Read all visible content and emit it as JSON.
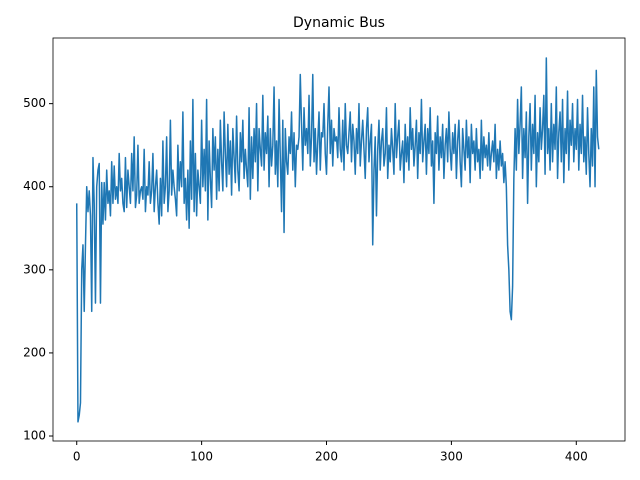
{
  "chart_data": {
    "type": "line",
    "title": "Dynamic Bus",
    "color": "#1f77b4",
    "xlim": [
      -19,
      439
    ],
    "xticks": [
      0,
      100,
      200,
      300,
      400
    ],
    "ylim": [
      94,
      579
    ],
    "yticks": [
      100,
      200,
      300,
      400,
      500
    ],
    "values": [
      380,
      117,
      125,
      140,
      300,
      330,
      250,
      330,
      400,
      370,
      395,
      365,
      250,
      435,
      380,
      260,
      400,
      420,
      428,
      260,
      405,
      355,
      405,
      360,
      420,
      380,
      395,
      365,
      430,
      380,
      425,
      385,
      400,
      380,
      440,
      395,
      410,
      380,
      370,
      435,
      375,
      420,
      400,
      380,
      440,
      395,
      460,
      375,
      390,
      450,
      380,
      395,
      400,
      385,
      445,
      370,
      400,
      390,
      430,
      380,
      395,
      440,
      370,
      400,
      420,
      380,
      355,
      410,
      365,
      455,
      380,
      400,
      460,
      370,
      395,
      480,
      390,
      420,
      400,
      385,
      365,
      450,
      395,
      430,
      400,
      490,
      380,
      410,
      360,
      420,
      350,
      455,
      385,
      505,
      370,
      440,
      365,
      420,
      400,
      380,
      480,
      400,
      445,
      395,
      505,
      360,
      455,
      410,
      375,
      470,
      420,
      460,
      385,
      445,
      395,
      480,
      430,
      395,
      490,
      440,
      400,
      475,
      415,
      455,
      390,
      470,
      435,
      405,
      485,
      420,
      395,
      465,
      430,
      480,
      410,
      445,
      420,
      400,
      495,
      385,
      460,
      410,
      470,
      430,
      500,
      395,
      470,
      445,
      425,
      510,
      420,
      465,
      440,
      485,
      400,
      470,
      425,
      450,
      520,
      415,
      455,
      400,
      505,
      435,
      370,
      480,
      345,
      470,
      430,
      415,
      460,
      440,
      490,
      420,
      465,
      400,
      450,
      445,
      460,
      535,
      475,
      420,
      495,
      450,
      470,
      440,
      510,
      425,
      460,
      535,
      430,
      470,
      415,
      455,
      490,
      420,
      465,
      460,
      500,
      440,
      415,
      475,
      520,
      440,
      480,
      425,
      470,
      455,
      460,
      435,
      495,
      445,
      430,
      480,
      420,
      500,
      450,
      440,
      465,
      490,
      430,
      475,
      455,
      415,
      470,
      440,
      500,
      425,
      455,
      480,
      445,
      410,
      470,
      495,
      430,
      455,
      475,
      330,
      420,
      460,
      365,
      445,
      480,
      420,
      455,
      470,
      425,
      440,
      495,
      410,
      450,
      430,
      470,
      445,
      415,
      500,
      435,
      460,
      480,
      420,
      440,
      455,
      405,
      475,
      430,
      460,
      420,
      495,
      445,
      470,
      425,
      450,
      480,
      410,
      465,
      440,
      505,
      430,
      455,
      475,
      415,
      470,
      440,
      495,
      425,
      455,
      380,
      465,
      440,
      485,
      420,
      460,
      435,
      475,
      410,
      450,
      470,
      430,
      490,
      445,
      420,
      465,
      440,
      475,
      410,
      455,
      480,
      430,
      400,
      470,
      445,
      420,
      480,
      435,
      460,
      405,
      475,
      440,
      455,
      420,
      470,
      430,
      445,
      410,
      480,
      420,
      460,
      435,
      450,
      425,
      465,
      420,
      440,
      455,
      430,
      475,
      410,
      445,
      420,
      455,
      425,
      440,
      405,
      430,
      400,
      330,
      300,
      250,
      240,
      280,
      410,
      470,
      420,
      505,
      440,
      475,
      520,
      410,
      470,
      435,
      490,
      380,
      460,
      500,
      420,
      475,
      440,
      510,
      400,
      465,
      430,
      495,
      445,
      470,
      510,
      415,
      555,
      440,
      470,
      420,
      500,
      430,
      475,
      445,
      520,
      410,
      465,
      490,
      430,
      505,
      405,
      470,
      440,
      515,
      420,
      480,
      450,
      500,
      430,
      470,
      445,
      505,
      420,
      475,
      440,
      510,
      430,
      460,
      415,
      495,
      440,
      400,
      470,
      425,
      520,
      400,
      540,
      460,
      445
    ]
  }
}
